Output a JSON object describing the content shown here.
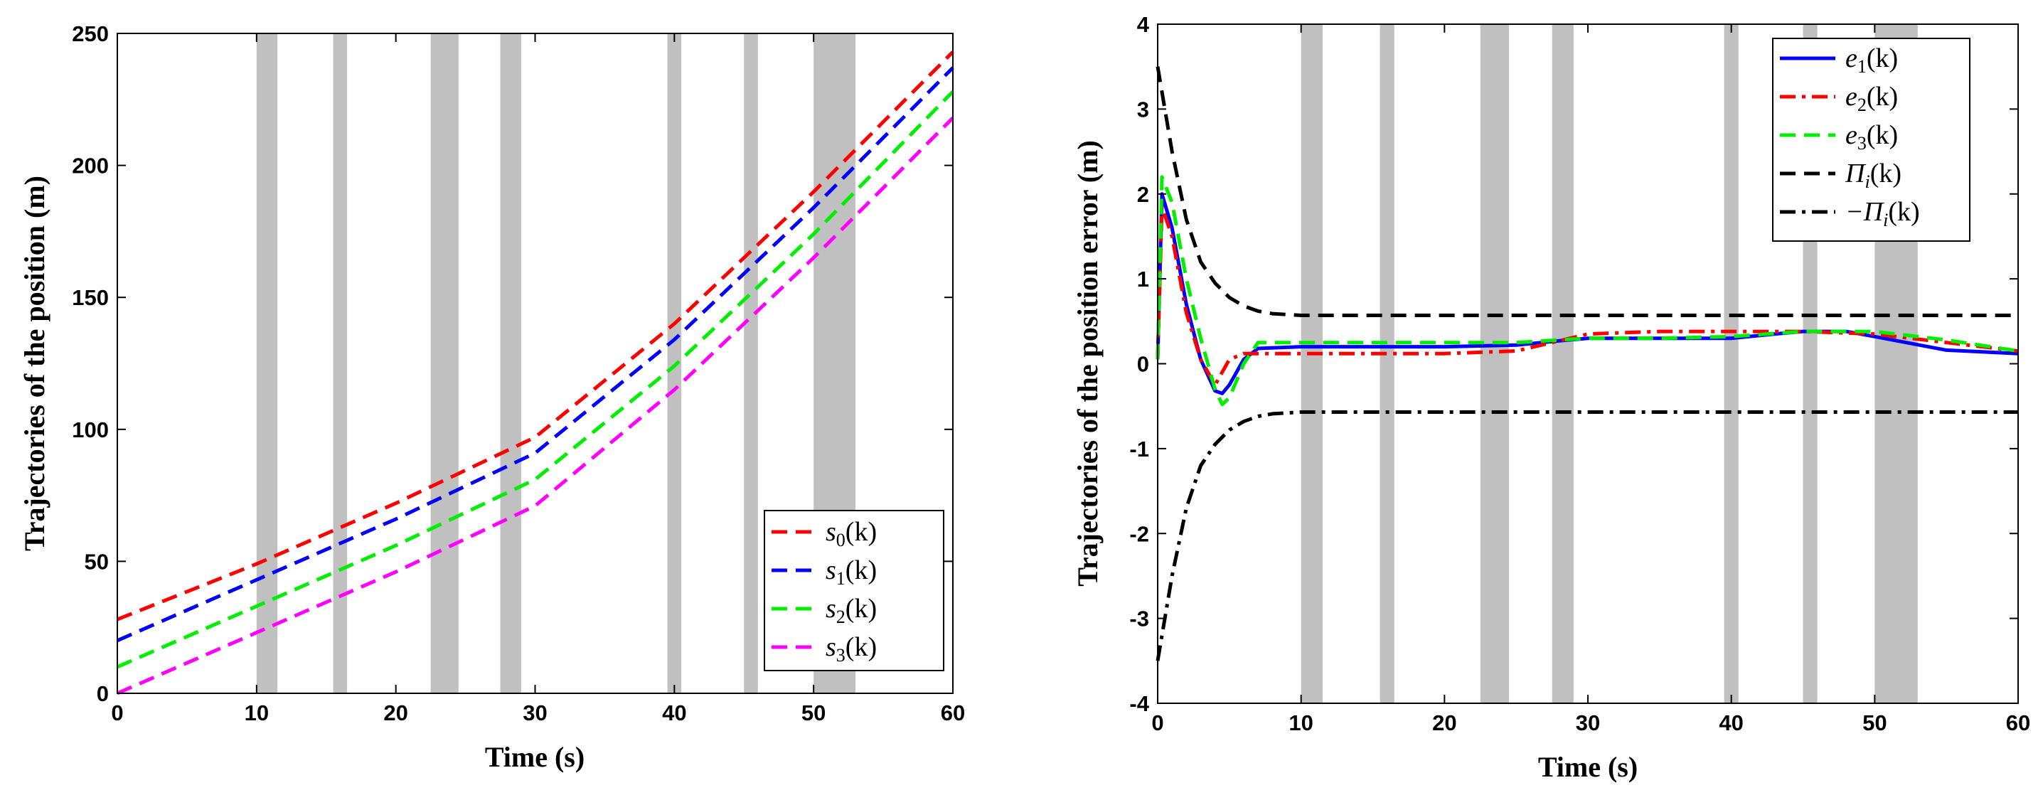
{
  "chart_data": [
    {
      "type": "line",
      "xlabel": "Time (s)",
      "ylabel": "Trajectories of the position (m)",
      "xlim": [
        0,
        60
      ],
      "ylim": [
        0,
        250
      ],
      "xticks": [
        0,
        10,
        20,
        30,
        40,
        50,
        60
      ],
      "yticks": [
        0,
        50,
        100,
        150,
        200,
        250
      ],
      "shaded_intervals": [
        [
          10,
          11.5
        ],
        [
          15.5,
          16.5
        ],
        [
          22.5,
          24.5
        ],
        [
          27.5,
          29
        ],
        [
          39.5,
          40.5
        ],
        [
          45,
          46
        ],
        [
          50,
          53
        ]
      ],
      "legend_position": "bottom-right",
      "series": [
        {
          "name": "s_0(k)",
          "label_base": "s",
          "label_sub": "0",
          "label_arg": "(k)",
          "color": "#ff0000",
          "style": "dashed",
          "x": [
            0,
            10,
            20,
            30,
            40,
            50,
            60
          ],
          "y": [
            28,
            49,
            72,
            97,
            140,
            190,
            243
          ]
        },
        {
          "name": "s_1(k)",
          "label_base": "s",
          "label_sub": "1",
          "label_arg": "(k)",
          "color": "#0000ff",
          "style": "dashed",
          "x": [
            0,
            10,
            20,
            30,
            40,
            50,
            60
          ],
          "y": [
            20,
            43,
            66,
            91,
            134,
            184,
            237
          ]
        },
        {
          "name": "s_2(k)",
          "label_base": "s",
          "label_sub": "2",
          "label_arg": "(k)",
          "color": "#00ee00",
          "style": "dashed",
          "x": [
            0,
            10,
            20,
            30,
            40,
            50,
            60
          ],
          "y": [
            10,
            33,
            56,
            81,
            124,
            174,
            228
          ]
        },
        {
          "name": "s_3(k)",
          "label_base": "s",
          "label_sub": "3",
          "label_arg": "(k)",
          "color": "#ff00ff",
          "style": "dashed",
          "x": [
            0,
            10,
            20,
            30,
            40,
            50,
            60
          ],
          "y": [
            0,
            23,
            46,
            71,
            115,
            165,
            218
          ]
        }
      ]
    },
    {
      "type": "line",
      "xlabel": "Time (s)",
      "ylabel": "Trajectories of the position error (m)",
      "xlim": [
        0,
        60
      ],
      "ylim": [
        -4,
        4
      ],
      "xticks": [
        0,
        10,
        20,
        30,
        40,
        50,
        60
      ],
      "yticks": [
        -4,
        -3,
        -2,
        -1,
        0,
        1,
        2,
        3,
        4
      ],
      "shaded_intervals": [
        [
          10,
          11.5
        ],
        [
          15.5,
          16.5
        ],
        [
          22.5,
          24.5
        ],
        [
          27.5,
          29
        ],
        [
          39.5,
          40.5
        ],
        [
          45,
          46
        ],
        [
          50,
          53
        ]
      ],
      "legend_position": "top-right",
      "series": [
        {
          "name": "e_1(k)",
          "label_base": "e",
          "label_sub": "1",
          "label_arg": "(k)",
          "color": "#0000ff",
          "style": "solid",
          "x": [
            0,
            0.3,
            1,
            2,
            3,
            4,
            4.5,
            5,
            6,
            7,
            10,
            15,
            20,
            25,
            28,
            30,
            35,
            40,
            43,
            45,
            48,
            50,
            55,
            60
          ],
          "y": [
            0.05,
            2.0,
            1.6,
            0.7,
            0.05,
            -0.32,
            -0.35,
            -0.25,
            0.05,
            0.18,
            0.2,
            0.2,
            0.2,
            0.22,
            0.27,
            0.3,
            0.3,
            0.3,
            0.35,
            0.38,
            0.38,
            0.32,
            0.16,
            0.12
          ]
        },
        {
          "name": "e_2(k)",
          "label_base": "e",
          "label_sub": "2",
          "label_arg": "(k)",
          "color": "#ff0000",
          "style": "dashdot",
          "x": [
            0,
            0.3,
            1,
            2,
            3,
            4,
            5,
            6,
            7,
            10,
            15,
            20,
            25,
            28,
            30,
            35,
            40,
            45,
            50,
            55,
            60
          ],
          "y": [
            0.05,
            1.85,
            1.5,
            0.6,
            0.05,
            -0.25,
            0.05,
            0.12,
            0.12,
            0.12,
            0.12,
            0.12,
            0.15,
            0.27,
            0.35,
            0.38,
            0.38,
            0.38,
            0.35,
            0.25,
            0.15
          ]
        },
        {
          "name": "e_3(k)",
          "label_base": "e",
          "label_sub": "3",
          "label_arg": "(k)",
          "color": "#00ee00",
          "style": "dashed",
          "x": [
            0,
            0.3,
            1,
            2,
            3,
            4,
            4.5,
            5,
            6,
            7,
            10,
            15,
            20,
            25,
            28,
            30,
            35,
            40,
            45,
            50,
            55,
            60
          ],
          "y": [
            0.05,
            2.2,
            1.9,
            1.0,
            0.3,
            -0.3,
            -0.48,
            -0.4,
            0.0,
            0.25,
            0.25,
            0.25,
            0.25,
            0.25,
            0.28,
            0.3,
            0.3,
            0.32,
            0.38,
            0.38,
            0.28,
            0.15
          ]
        },
        {
          "name": "Π_i(k)",
          "label_base": "Π",
          "label_sub": "i",
          "label_arg": "(k)",
          "color": "#000000",
          "style": "dashed",
          "x": [
            0,
            0.5,
            1,
            2,
            3,
            4,
            5,
            6,
            7,
            8,
            10,
            15,
            20,
            30,
            40,
            50,
            60
          ],
          "y": [
            3.5,
            3.0,
            2.5,
            1.7,
            1.2,
            0.95,
            0.78,
            0.68,
            0.62,
            0.59,
            0.57,
            0.57,
            0.57,
            0.57,
            0.57,
            0.57,
            0.57
          ]
        },
        {
          "name": "-Π_i(k)",
          "label_base": "−Π",
          "label_sub": "i",
          "label_arg": "(k)",
          "color": "#000000",
          "style": "dashdot",
          "x": [
            0,
            0.5,
            1,
            2,
            3,
            4,
            5,
            6,
            7,
            8,
            10,
            15,
            20,
            30,
            40,
            50,
            60
          ],
          "y": [
            -3.5,
            -3.0,
            -2.5,
            -1.7,
            -1.2,
            -0.95,
            -0.78,
            -0.68,
            -0.62,
            -0.59,
            -0.57,
            -0.57,
            -0.57,
            -0.57,
            -0.57,
            -0.57,
            -0.57
          ]
        }
      ]
    }
  ]
}
